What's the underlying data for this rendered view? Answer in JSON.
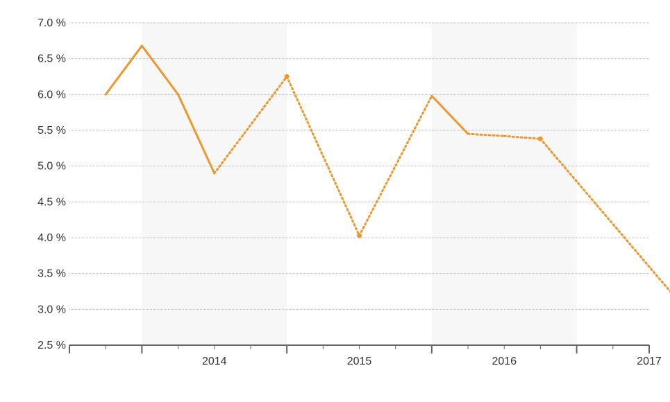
{
  "chart_data": {
    "type": "line",
    "title": "",
    "xlabel": "",
    "ylabel": "",
    "ylim": [
      2.5,
      7.0
    ],
    "y_ticks": [
      2.5,
      3.0,
      3.5,
      4.0,
      4.5,
      5.0,
      5.5,
      6.0,
      6.5,
      7.0
    ],
    "y_tick_suffix": " %",
    "grid": true,
    "years": [
      "2014",
      "2015",
      "2016",
      "2017"
    ],
    "points": [
      {
        "x": 0.5,
        "y": 6.0,
        "marker": false
      },
      {
        "x": 1.0,
        "y": 6.68,
        "marker": false
      },
      {
        "x": 1.5,
        "y": 6.0,
        "marker": false
      },
      {
        "x": 2.0,
        "y": 4.9,
        "marker": false
      },
      {
        "x": 3.0,
        "y": 6.25,
        "marker": true
      },
      {
        "x": 4.0,
        "y": 4.03,
        "marker": true
      },
      {
        "x": 5.0,
        "y": 5.98,
        "marker": false
      },
      {
        "x": 5.5,
        "y": 5.45,
        "marker": false
      },
      {
        "x": 6.0,
        "y": 5.42,
        "marker": false
      },
      {
        "x": 6.5,
        "y": 5.38,
        "marker": true
      },
      {
        "x": 8.5,
        "y": 3.0,
        "marker": true
      }
    ],
    "segments": [
      {
        "from": 0,
        "to": 1,
        "style": "solid"
      },
      {
        "from": 1,
        "to": 2,
        "style": "solid"
      },
      {
        "from": 2,
        "to": 3,
        "style": "solid"
      },
      {
        "from": 3,
        "to": 4,
        "style": "dotted"
      },
      {
        "from": 4,
        "to": 5,
        "style": "dotted"
      },
      {
        "from": 5,
        "to": 6,
        "style": "dotted"
      },
      {
        "from": 6,
        "to": 7,
        "style": "solid"
      },
      {
        "from": 7,
        "to": 8,
        "style": "dotted"
      },
      {
        "from": 8,
        "to": 9,
        "style": "dotted"
      },
      {
        "from": 9,
        "to": 10,
        "style": "dotted"
      }
    ],
    "colors": {
      "line": "#f0962a",
      "band": "#f7f7f7",
      "grid": "#b8b8b8",
      "axis": "#666666"
    }
  }
}
